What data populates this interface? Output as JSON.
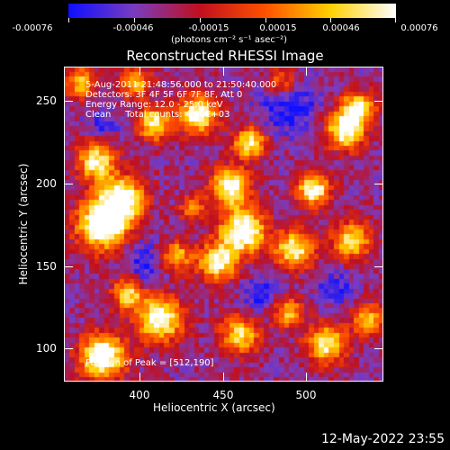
{
  "colorbar": {
    "labels": [
      "-0.00076",
      "-0.00046",
      "-0.00015",
      "0.00015",
      "0.00046",
      "0.00076"
    ],
    "units": "(photons cm⁻² s⁻¹ asec⁻²)",
    "colors": [
      "#1010ff",
      "#7a3cc0",
      "#c01020",
      "#ff5000",
      "#ffd000",
      "#ffffff"
    ]
  },
  "title": "Reconstructed RHESSI Image",
  "info": {
    "line1": "5-Aug-2011 21:48:56.000 to 21:50:40.000",
    "line2": "Detectors: 3F 4F 5F 6F 7F 8F, Att 0",
    "line3": "Energy Range: 12.0 - 25.0 keV",
    "line4": "Clean     Total counts: 4.26E+03",
    "peak": "Position of Peak = [512,190]"
  },
  "axes": {
    "xlabel": "Heliocentric X (arcsec)",
    "ylabel": "Heliocentric Y (arcsec)",
    "xticks": [
      "400",
      "450",
      "500"
    ],
    "yticks": [
      "250",
      "200",
      "150",
      "100"
    ]
  },
  "timestamp": "12-May-2022 23:55",
  "chart_data": {
    "type": "heatmap",
    "title": "Reconstructed RHESSI Image",
    "xlabel": "Heliocentric X (arcsec)",
    "ylabel": "Heliocentric Y (arcsec)",
    "xlim": [
      361,
      545
    ],
    "ylim": [
      81,
      266
    ],
    "zlim": [
      -0.00076,
      0.00076
    ],
    "peak_position": [
      512,
      190
    ],
    "total_counts": 4260
  }
}
